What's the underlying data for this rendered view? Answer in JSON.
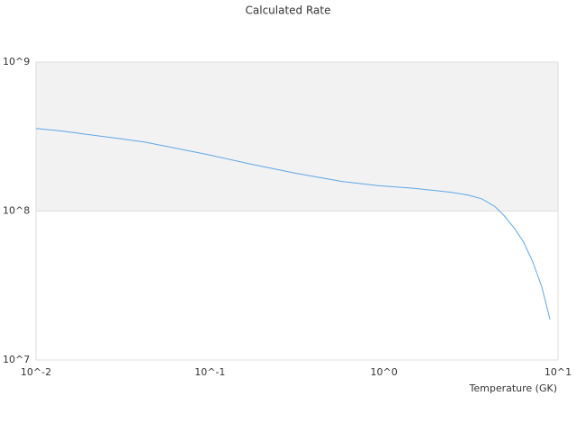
{
  "chart_data": {
    "type": "line",
    "title": "Calculated Rate",
    "x_label": "Temperature (GK)",
    "x": [
      0.01,
      0.0143,
      0.0204,
      0.0292,
      0.0418,
      0.0597,
      0.0962,
      0.1745,
      0.316,
      0.574,
      0.925,
      1.49,
      2.4,
      3.04,
      3.64,
      4.35,
      4.9,
      5.65,
      6.36,
      7.17,
      8.08,
      8.99
    ],
    "series": [
      {
        "name": "Calculated Rate",
        "color": "#5ea6e6",
        "values": [
          358000000,
          344000000,
          325000000,
          308000000,
          291000000,
          268000000,
          240000000,
          206000000,
          179000000,
          158000000,
          148000000,
          142000000,
          134000000,
          128000000,
          121000000,
          107000000,
          93300000,
          75900000,
          61500000,
          45400000,
          30800000,
          18700000
        ]
      }
    ],
    "xlim": [
      0.01,
      10
    ],
    "ylim": [
      10000000,
      1000000000
    ],
    "xticks": [
      {
        "value": 0.01,
        "label": "10^-2"
      },
      {
        "value": 0.1,
        "label": "10^-1"
      },
      {
        "value": 1,
        "label": "10^0"
      },
      {
        "value": 10,
        "label": "10^1"
      }
    ],
    "yticks": [
      {
        "value": 10000000,
        "label": "10^7"
      },
      {
        "value": 100000000,
        "label": "10^8"
      },
      {
        "value": 1000000000,
        "label": "10^9"
      }
    ],
    "x_log": true,
    "y_log": true,
    "grid": true
  }
}
